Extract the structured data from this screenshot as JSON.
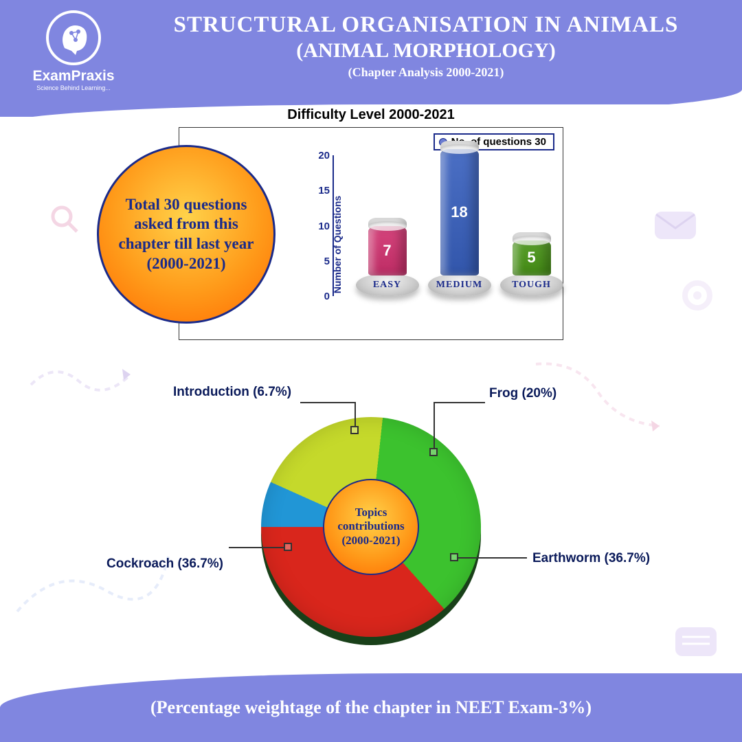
{
  "brand": {
    "name": "ExamPraxis",
    "tagline": "Science Behind Learning..."
  },
  "header": {
    "title": "STRUCTURAL ORGANISATION IN ANIMALS",
    "subtitle": "(ANIMAL MORPHOLOGY)",
    "span": "(Chapter Analysis 2000-2021)",
    "bg_color": "#8086e0",
    "text_color": "#ffffff",
    "title_fontsize": 33,
    "subtitle_fontsize": 30
  },
  "summary": {
    "text": "Total 30 questions asked from this chapter till last year (2000-2021)",
    "circle_gradient": [
      "#ffd24a",
      "#ff9b1a",
      "#ff6a00"
    ],
    "border_color": "#1a2a8a",
    "text_color": "#1a2a8a",
    "fontsize": 23
  },
  "bar_chart": {
    "title": "Difficulty Level 2000-2021",
    "legend_text": "No. of questions 30",
    "legend_marker_color": "#6b7dd1",
    "y_label": "Number of Questions",
    "ylim": [
      0,
      20
    ],
    "ytick_step": 5,
    "axis_color": "#1a2a8a",
    "label_fontsize": 14,
    "tick_fontsize": 15,
    "bars": [
      {
        "category": "EASY",
        "value": 7,
        "color": "#d6457d"
      },
      {
        "category": "MEDIUM",
        "value": 18,
        "color": "#4b6fc4"
      },
      {
        "category": "TOUGH",
        "value": 5,
        "color": "#5aa02c"
      }
    ]
  },
  "pie_chart": {
    "center_text": "Topics contributions (2000-2021)",
    "center_gradient": [
      "#ffd24a",
      "#ff9b1a",
      "#ff6a00"
    ],
    "label_fontsize": 19,
    "label_color": "#0a1a5a",
    "slices": [
      {
        "label": "Introduction (6.7%)",
        "value": 6.7,
        "color": "#2196d6"
      },
      {
        "label": "Frog (20%)",
        "value": 20.0,
        "color": "#c5d92b"
      },
      {
        "label": "Earthworm (36.7%)",
        "value": 36.7,
        "color": "#3cc22e"
      },
      {
        "label": "Cockroach (36.7%)",
        "value": 36.7,
        "color": "#d9261c"
      }
    ]
  },
  "footer": {
    "text": "(Percentage weightage of the chapter in NEET Exam-3%)",
    "bg_color": "#8086e0",
    "text_color": "#ffffff",
    "fontsize": 26
  },
  "deco_color": "#e9dcf4"
}
